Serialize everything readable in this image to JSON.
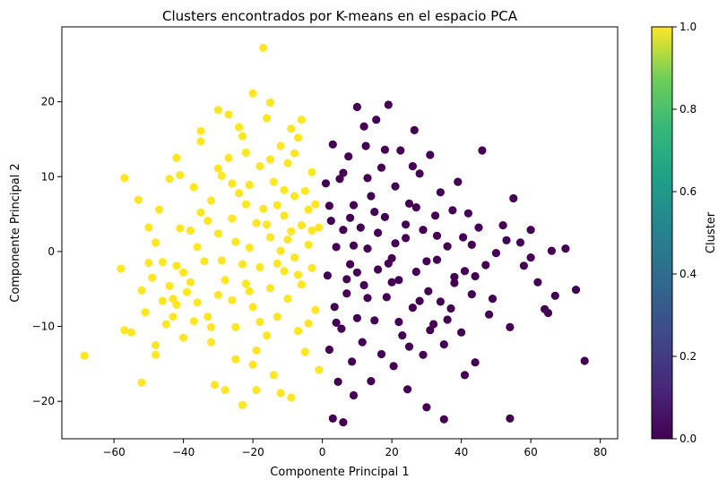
{
  "chart_data": {
    "type": "scatter",
    "title": "Clusters encontrados por K-means en el espacio PCA",
    "xlabel": "Componente Principal 1",
    "ylabel": "Componente Principal 2",
    "xlim": [
      -75,
      85
    ],
    "ylim": [
      -25,
      30
    ],
    "xticks": [
      -60,
      -40,
      -20,
      0,
      20,
      40,
      60,
      80
    ],
    "yticks": [
      -20,
      -10,
      0,
      10,
      20
    ],
    "xtick_labels": [
      "−60",
      "−40",
      "−20",
      "0",
      "20",
      "40",
      "60",
      "80"
    ],
    "ytick_labels": [
      "−20",
      "−10",
      "0",
      "10",
      "20"
    ],
    "grid": false,
    "colorbar": {
      "label": "Cluster",
      "range": [
        0.0,
        1.0
      ],
      "ticks": [
        0.0,
        0.2,
        0.4,
        0.6,
        0.8,
        1.0
      ],
      "tick_labels": [
        "0.0",
        "0.2",
        "0.4",
        "0.6",
        "0.8",
        "1.0"
      ],
      "colormap": "viridis"
    },
    "series": [
      {
        "cluster": 1,
        "color": "#fde725",
        "points": [
          [
            -68.5,
            -13.9
          ],
          [
            -58,
            -2.3
          ],
          [
            -57,
            9.8
          ],
          [
            -57,
            -10.5
          ],
          [
            -55,
            -10.8
          ],
          [
            -53,
            6.9
          ],
          [
            -52,
            -5.2
          ],
          [
            -52,
            -17.5
          ],
          [
            -51,
            -8.1
          ],
          [
            -50,
            3.2
          ],
          [
            -49,
            -3.5
          ],
          [
            -48,
            -12.5
          ],
          [
            -48,
            -13.8
          ],
          [
            -47,
            5.6
          ],
          [
            -46,
            -1.4
          ],
          [
            -45,
            -9.7
          ],
          [
            -44,
            -4.6
          ],
          [
            -43,
            -6.3
          ],
          [
            -43,
            -8.7
          ],
          [
            -42,
            -7.1
          ],
          [
            -42,
            12.5
          ],
          [
            -41,
            10.2
          ],
          [
            -41,
            3.1
          ],
          [
            -40,
            -2.8
          ],
          [
            -39,
            -5.4
          ],
          [
            -38,
            -4.1
          ],
          [
            -37,
            -9.3
          ],
          [
            -36,
            0.6
          ],
          [
            -35,
            5.2
          ],
          [
            -35,
            16.1
          ],
          [
            -34,
            -1.3
          ],
          [
            -33,
            -8.7
          ],
          [
            -32,
            6.8
          ],
          [
            -32,
            -12.1
          ],
          [
            -31,
            -17.8
          ],
          [
            -30,
            2.4
          ],
          [
            -30,
            -5.8
          ],
          [
            -29,
            10.1
          ],
          [
            -28,
            -3.8
          ],
          [
            -27,
            18.3
          ],
          [
            -27,
            12.5
          ],
          [
            -26,
            -6.5
          ],
          [
            -26,
            4.4
          ],
          [
            -25,
            1.3
          ],
          [
            -25,
            -10.1
          ],
          [
            -24,
            16.6
          ],
          [
            -24,
            7.8
          ],
          [
            -23,
            -1.7
          ],
          [
            -23,
            -20.5
          ],
          [
            -22,
            13.2
          ],
          [
            -22,
            -4.3
          ],
          [
            -21,
            0.5
          ],
          [
            -21,
            8.9
          ],
          [
            -20,
            -7.4
          ],
          [
            -20,
            21.1
          ],
          [
            -19,
            3.8
          ],
          [
            -19,
            -13.2
          ],
          [
            -18,
            11.4
          ],
          [
            -18,
            -2.1
          ],
          [
            -17,
            27.2
          ],
          [
            -17,
            5.7
          ],
          [
            -16,
            -11.2
          ],
          [
            -16,
            17.8
          ],
          [
            -15,
            -4.9
          ],
          [
            -15,
            1.9
          ],
          [
            -14,
            9.3
          ],
          [
            -14,
            -16.5
          ],
          [
            -13,
            6.2
          ],
          [
            -13,
            -8.7
          ],
          [
            -12,
            14.1
          ],
          [
            -12,
            0.1
          ],
          [
            -11,
            -2.6
          ],
          [
            -11,
            4.8
          ],
          [
            -10,
            11.8
          ],
          [
            -10,
            -6.3
          ],
          [
            -9,
            2.7
          ],
          [
            -9,
            -19.5
          ],
          [
            -8,
            -0.8
          ],
          [
            -8,
            7.4
          ],
          [
            -7,
            -10.6
          ],
          [
            -7,
            15.2
          ],
          [
            -6,
            3.5
          ],
          [
            -6,
            -4.4
          ],
          [
            -5,
            8.1
          ],
          [
            -5,
            -13.4
          ],
          [
            -4,
            0.9
          ],
          [
            -4,
            5.6
          ],
          [
            -3,
            -2.2
          ],
          [
            -3,
            10.6
          ],
          [
            -2,
            6.3
          ],
          [
            -2,
            -7.8
          ],
          [
            -1,
            3.2
          ],
          [
            -1,
            -15.8
          ],
          [
            -30,
            18.9
          ],
          [
            -35,
            14.7
          ],
          [
            -44,
            9.7
          ],
          [
            -38,
            2.8
          ],
          [
            -28,
            -18.5
          ],
          [
            -20,
            -15.1
          ],
          [
            -12,
            -18.9
          ],
          [
            -6,
            17.6
          ],
          [
            -15,
            12.3
          ],
          [
            -25,
            -14.4
          ],
          [
            -32,
            -10.1
          ],
          [
            -40,
            -11.5
          ],
          [
            -46,
            -6.6
          ],
          [
            -50,
            -1.5
          ],
          [
            -22,
            6.3
          ],
          [
            -18,
            -9.4
          ],
          [
            -10,
            1.6
          ],
          [
            -7,
            -3.1
          ],
          [
            -3,
            2.8
          ],
          [
            -16,
            3.6
          ],
          [
            -26,
            9.1
          ],
          [
            -33,
            4.1
          ],
          [
            -36,
            -6.8
          ],
          [
            -29,
            -1.2
          ],
          [
            -21,
            -5.3
          ],
          [
            -13,
            -1.6
          ],
          [
            -8,
            13.1
          ],
          [
            -4,
            -9.6
          ],
          [
            -11,
            8.2
          ],
          [
            -19,
            -18.5
          ],
          [
            -23,
            15.4
          ],
          [
            -15,
            19.9
          ],
          [
            -9,
            16.4
          ],
          [
            -30,
            11.1
          ],
          [
            -42,
            -1.9
          ],
          [
            -37,
            8.6
          ],
          [
            -48,
            1.2
          ]
        ]
      },
      {
        "cluster": 0,
        "color": "#440154",
        "points": [
          [
            1,
            9.1
          ],
          [
            1.5,
            -3.2
          ],
          [
            2,
            -13.1
          ],
          [
            2.5,
            4.1
          ],
          [
            3,
            -22.3
          ],
          [
            3,
            14.3
          ],
          [
            3.5,
            -7.4
          ],
          [
            4,
            0.6
          ],
          [
            4.5,
            -17.4
          ],
          [
            5,
            9.7
          ],
          [
            5.5,
            -10.3
          ],
          [
            6,
            -22.8
          ],
          [
            6,
            2.9
          ],
          [
            7,
            -5.6
          ],
          [
            7.5,
            12.7
          ],
          [
            8,
            -1.7
          ],
          [
            8.5,
            -14.7
          ],
          [
            9,
            6.2
          ],
          [
            9,
            -19.2
          ],
          [
            10,
            19.3
          ],
          [
            10,
            -8.9
          ],
          [
            11,
            3.2
          ],
          [
            11.5,
            -12.1
          ],
          [
            12,
            -4.5
          ],
          [
            12.5,
            14.1
          ],
          [
            13,
            0.4
          ],
          [
            14,
            -17.3
          ],
          [
            14,
            7.4
          ],
          [
            15,
            -9.2
          ],
          [
            15.5,
            17.6
          ],
          [
            16,
            -2.4
          ],
          [
            17,
            11.2
          ],
          [
            17,
            -13.7
          ],
          [
            18,
            4.6
          ],
          [
            18.5,
            -6.1
          ],
          [
            19,
            19.6
          ],
          [
            20,
            -0.9
          ],
          [
            20.5,
            -15.3
          ],
          [
            21,
            8.7
          ],
          [
            22,
            -3.8
          ],
          [
            22.5,
            13.5
          ],
          [
            23,
            -11.2
          ],
          [
            24,
            1.8
          ],
          [
            24.5,
            -18.4
          ],
          [
            25,
            6.4
          ],
          [
            26,
            -7.5
          ],
          [
            26.5,
            16.2
          ],
          [
            27,
            -2.7
          ],
          [
            28,
            10.4
          ],
          [
            29,
            -13.8
          ],
          [
            29,
            2.9
          ],
          [
            30,
            -20.8
          ],
          [
            30.5,
            -5.3
          ],
          [
            31,
            12.9
          ],
          [
            32,
            -9.7
          ],
          [
            32.5,
            4.8
          ],
          [
            33,
            -1.1
          ],
          [
            34,
            7.9
          ],
          [
            35,
            -12.4
          ],
          [
            35,
            -22.4
          ],
          [
            36,
            0.7
          ],
          [
            37,
            -7.6
          ],
          [
            37.5,
            5.5
          ],
          [
            38,
            -3.4
          ],
          [
            39,
            9.3
          ],
          [
            40,
            -10.8
          ],
          [
            40.5,
            1.9
          ],
          [
            41,
            -16.5
          ],
          [
            42,
            5.1
          ],
          [
            43,
            -5.7
          ],
          [
            44,
            -14.8
          ],
          [
            45,
            3.2
          ],
          [
            46,
            13.5
          ],
          [
            47,
            -1.8
          ],
          [
            48,
            -8.4
          ],
          [
            50,
            -0.2
          ],
          [
            52,
            3.5
          ],
          [
            54,
            -22.3
          ],
          [
            54,
            -10.1
          ],
          [
            55,
            7.1
          ],
          [
            57,
            1.2
          ],
          [
            58,
            -1.9
          ],
          [
            60,
            2.9
          ],
          [
            60,
            -0.8
          ],
          [
            62,
            -4.1
          ],
          [
            64,
            -7.7
          ],
          [
            65,
            -8.2
          ],
          [
            66,
            0.1
          ],
          [
            67,
            -5.9
          ],
          [
            70,
            0.4
          ],
          [
            73,
            -5.1
          ],
          [
            75.5,
            -14.6
          ],
          [
            8,
            4.5
          ],
          [
            13,
            -6.2
          ],
          [
            19,
            -1.6
          ],
          [
            24,
            3.6
          ],
          [
            28,
            -6.6
          ],
          [
            33,
            2.1
          ],
          [
            38,
            -4.2
          ],
          [
            43,
            0.9
          ],
          [
            6,
            10.5
          ],
          [
            12,
            16.7
          ],
          [
            18,
            13.6
          ],
          [
            26,
            11.4
          ],
          [
            10,
            -2.8
          ],
          [
            16,
            2.5
          ],
          [
            22,
            -9.4
          ],
          [
            30,
            -1.3
          ],
          [
            4,
            -9.5
          ],
          [
            9,
            0.8
          ],
          [
            15,
            5.3
          ],
          [
            20,
            -4.1
          ],
          [
            27,
            5.9
          ],
          [
            34,
            -6.7
          ],
          [
            41,
            -2.6
          ],
          [
            49,
            -6.3
          ],
          [
            2,
            6.1
          ],
          [
            7,
            -3.7
          ],
          [
            13,
            9.8
          ],
          [
            21,
            1.1
          ],
          [
            25,
            -12.7
          ],
          [
            31,
            -10.5
          ],
          [
            36,
            -9.1
          ],
          [
            44,
            -3.3
          ],
          [
            53,
            1.5
          ]
        ]
      }
    ]
  }
}
